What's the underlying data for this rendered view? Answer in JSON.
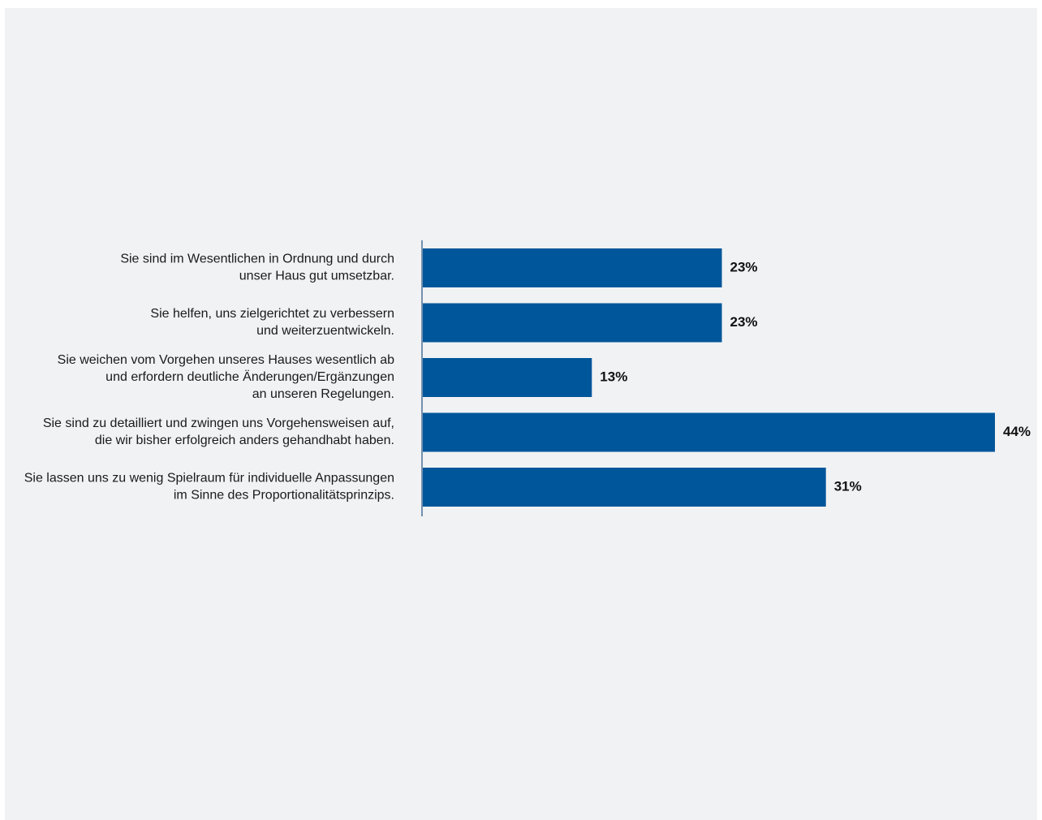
{
  "chart_data": {
    "type": "bar",
    "orientation": "horizontal",
    "categories": [
      [
        "Sie sind im Wesentlichen in Ordnung und durch",
        "unser Haus gut umsetzbar."
      ],
      [
        "Sie helfen, uns zielgerichtet zu verbessern",
        "und weiterzuentwickeln."
      ],
      [
        "Sie weichen vom Vorgehen unseres Hauses wesentlich ab",
        "und erfordern deutliche Änderungen/Ergänzungen",
        "an unseren Regelungen."
      ],
      [
        "Sie sind zu detailliert und zwingen uns Vorgehensweisen auf,",
        "die wir bisher erfolgreich anders gehandhabt haben."
      ],
      [
        "Sie lassen uns zu wenig Spielraum für individuelle Anpassungen",
        "im Sinne des Proportionalitätsprinzips."
      ]
    ],
    "values": [
      23,
      23,
      13,
      44,
      31
    ],
    "value_labels": [
      "23%",
      "23%",
      "13%",
      "44%",
      "31%"
    ],
    "unit": "%",
    "xlim": [
      0,
      44
    ],
    "grid": false,
    "legend": "none",
    "bar_color": "#00569a",
    "axis_color": "#4a6f95",
    "background_color": "#f1f2f4"
  }
}
